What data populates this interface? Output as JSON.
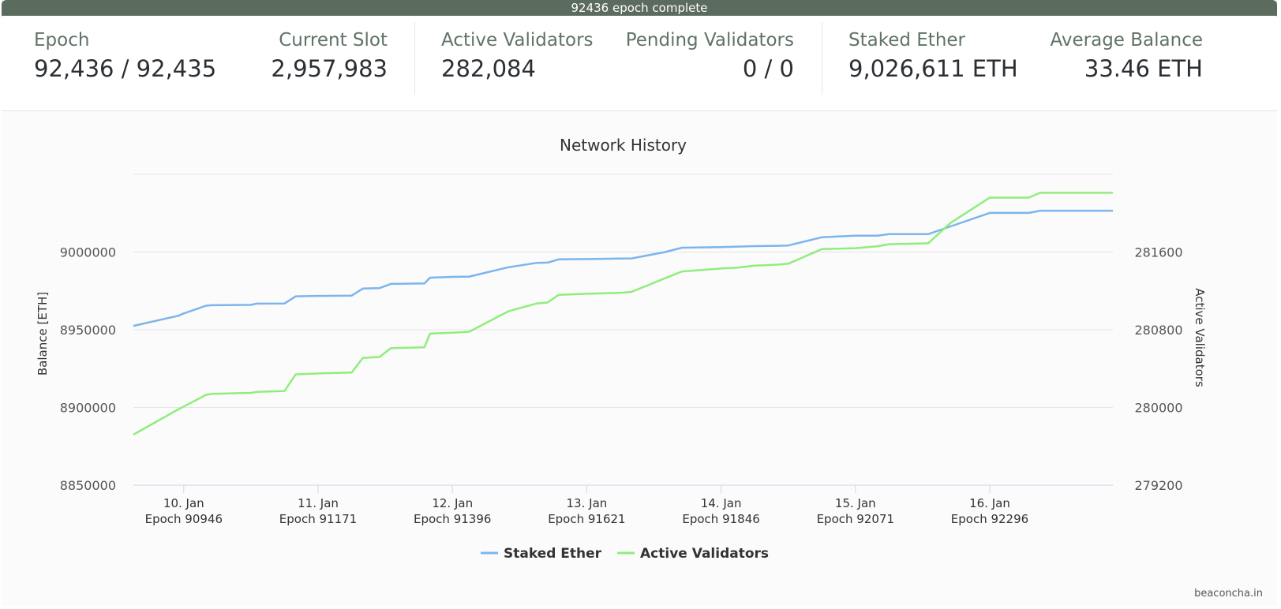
{
  "status_bar": {
    "text": "92436 epoch complete"
  },
  "stats": {
    "epoch": {
      "label": "Epoch",
      "value": "92,436 / 92,435"
    },
    "current_slot": {
      "label": "Current Slot",
      "value": "2,957,983"
    },
    "active_validators": {
      "label": "Active Validators",
      "value": "282,084"
    },
    "pending_validators": {
      "label": "Pending Validators",
      "value": "0 / 0"
    },
    "staked_ether": {
      "label": "Staked Ether",
      "value": "9,026,611 ETH"
    },
    "average_balance": {
      "label": "Average Balance",
      "value": "33.46 ETH"
    }
  },
  "credits": "beaconcha.in",
  "colors": {
    "staked": "#7cb5ec",
    "validators": "#90ed7d",
    "label": "#5f7366"
  },
  "chart_data": {
    "type": "line",
    "title": "Network History",
    "ylabel_left": "Balance [ETH]",
    "ylabel_right": "Active Validators",
    "y_left_range": [
      8850000,
      9050000
    ],
    "y_right_range": [
      279200,
      282400
    ],
    "y_left_ticks": [
      "8850000",
      "8900000",
      "8950000",
      "9000000"
    ],
    "y_right_ticks": [
      "279200",
      "280000",
      "280800",
      "281600"
    ],
    "x_range": [
      "2021-01-09 15:00",
      "2021-01-16 22:00"
    ],
    "x_ticks": [
      {
        "date": "2021-01-10 00:00",
        "line1": "10. Jan",
        "line2": "Epoch 90946"
      },
      {
        "date": "2021-01-11 00:00",
        "line1": "11. Jan",
        "line2": "Epoch 91171"
      },
      {
        "date": "2021-01-12 00:00",
        "line1": "12. Jan",
        "line2": "Epoch 91396"
      },
      {
        "date": "2021-01-13 00:00",
        "line1": "13. Jan",
        "line2": "Epoch 91621"
      },
      {
        "date": "2021-01-14 00:00",
        "line1": "14. Jan",
        "line2": "Epoch 91846"
      },
      {
        "date": "2021-01-15 00:00",
        "line1": "15. Jan",
        "line2": "Epoch 92071"
      },
      {
        "date": "2021-01-16 00:00",
        "line1": "16. Jan",
        "line2": "Epoch 92296"
      }
    ],
    "grid": true,
    "legend_position": "bottom-center",
    "series": [
      {
        "name": "Staked Ether",
        "axis": "left",
        "x": [
          "2021-01-09 15:00",
          "2021-01-09 23:00",
          "2021-01-10 00:00",
          "2021-01-10 04:00",
          "2021-01-10 05:00",
          "2021-01-10 12:00",
          "2021-01-10 13:00",
          "2021-01-10 18:00",
          "2021-01-10 20:00",
          "2021-01-11 00:00",
          "2021-01-11 06:00",
          "2021-01-11 08:00",
          "2021-01-11 11:00",
          "2021-01-11 13:00",
          "2021-01-11 19:00",
          "2021-01-11 20:00",
          "2021-01-12 00:00",
          "2021-01-12 03:00",
          "2021-01-12 10:00",
          "2021-01-12 15:00",
          "2021-01-12 17:00",
          "2021-01-12 19:00",
          "2021-01-13 00:00",
          "2021-01-13 06:00",
          "2021-01-13 08:00",
          "2021-01-13 14:00",
          "2021-01-13 17:00",
          "2021-01-14 00:00",
          "2021-01-14 03:00",
          "2021-01-14 06:00",
          "2021-01-14 10:00",
          "2021-01-14 12:00",
          "2021-01-14 18:00",
          "2021-01-15 00:00",
          "2021-01-15 04:00",
          "2021-01-15 06:00",
          "2021-01-15 13:00",
          "2021-01-15 17:00",
          "2021-01-16 00:00",
          "2021-01-16 07:00",
          "2021-01-16 09:00",
          "2021-01-16 11:00",
          "2021-01-16 22:00"
        ],
        "values": [
          8952500,
          8959000,
          8960500,
          8965500,
          8965800,
          8966000,
          8966800,
          8966900,
          8971500,
          8971800,
          8972000,
          8976500,
          8976800,
          8979500,
          8979800,
          8983500,
          8984000,
          8984200,
          8990200,
          8993000,
          8993200,
          8995300,
          8995500,
          8995800,
          8995900,
          9000000,
          9002800,
          9003200,
          9003500,
          9003800,
          9004000,
          9004200,
          9009500,
          9010500,
          9010500,
          9011500,
          9011500,
          9016500,
          9025200,
          9025200,
          9026600,
          9026600,
          9026600
        ]
      },
      {
        "name": "Active Validators",
        "axis": "right",
        "x": [
          "2021-01-09 15:00",
          "2021-01-09 23:00",
          "2021-01-10 00:00",
          "2021-01-10 04:00",
          "2021-01-10 05:00",
          "2021-01-10 12:00",
          "2021-01-10 13:00",
          "2021-01-10 18:00",
          "2021-01-10 20:00",
          "2021-01-11 00:00",
          "2021-01-11 06:00",
          "2021-01-11 08:00",
          "2021-01-11 11:00",
          "2021-01-11 13:00",
          "2021-01-11 19:00",
          "2021-01-11 20:00",
          "2021-01-12 00:00",
          "2021-01-12 03:00",
          "2021-01-12 10:00",
          "2021-01-12 15:00",
          "2021-01-12 17:00",
          "2021-01-12 19:00",
          "2021-01-13 00:00",
          "2021-01-13 06:00",
          "2021-01-13 08:00",
          "2021-01-13 14:00",
          "2021-01-13 17:00",
          "2021-01-14 00:00",
          "2021-01-14 03:00",
          "2021-01-14 06:00",
          "2021-01-14 10:00",
          "2021-01-14 12:00",
          "2021-01-14 18:00",
          "2021-01-15 00:00",
          "2021-01-15 04:00",
          "2021-01-15 06:00",
          "2021-01-15 13:00",
          "2021-01-15 17:00",
          "2021-01-16 00:00",
          "2021-01-16 07:00",
          "2021-01-16 09:00",
          "2021-01-16 11:00",
          "2021-01-16 22:00"
        ],
        "values": [
          279720,
          279980,
          280010,
          280130,
          280140,
          280150,
          280160,
          280170,
          280340,
          280350,
          280360,
          280510,
          280520,
          280610,
          280620,
          280760,
          280770,
          280780,
          280990,
          281070,
          281080,
          281160,
          281170,
          281180,
          281190,
          281330,
          281400,
          281430,
          281440,
          281460,
          281470,
          281480,
          281630,
          281640,
          281660,
          281680,
          281690,
          281900,
          282160,
          282160,
          282210,
          282210,
          282210
        ]
      }
    ]
  }
}
